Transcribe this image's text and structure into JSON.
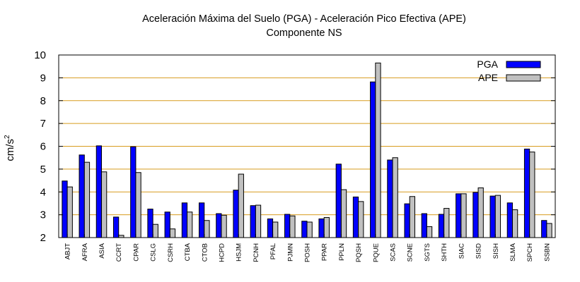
{
  "chart_data": {
    "type": "bar",
    "title": "Aceleración Máxima del Suelo (PGA) -  Aceleración Pico Efectiva (APE)",
    "subtitle": "Componente NS",
    "ylabel_base": "cm/s",
    "ylabel_sup": "2",
    "ylim": [
      2,
      10
    ],
    "yticks": [
      2,
      3,
      4,
      5,
      6,
      7,
      8,
      9,
      10
    ],
    "grid": true,
    "legend_position": "top-right",
    "categories": [
      "ABJT",
      "AFRA",
      "ASIA",
      "CCRT",
      "CPAR",
      "CSLG",
      "CSRH",
      "CTBA",
      "CTOB",
      "HCPD",
      "HSJM",
      "PCNH",
      "PFAL",
      "PJMN",
      "POSH",
      "PPAR",
      "PPLN",
      "PQSH",
      "PQUE",
      "SCAS",
      "SCNE",
      "SGTS",
      "SHTH",
      "SIAC",
      "SISD",
      "SISH",
      "SLMA",
      "SPCH",
      "SSBN"
    ],
    "series": [
      {
        "name": "PGA",
        "color": "#0000ff",
        "values": [
          4.48,
          5.62,
          6.02,
          2.9,
          5.98,
          3.25,
          3.12,
          3.52,
          3.52,
          3.05,
          4.08,
          3.4,
          2.82,
          3.02,
          2.72,
          2.82,
          5.22,
          3.78,
          8.82,
          5.4,
          3.48,
          3.05,
          3.02,
          3.92,
          3.98,
          3.82,
          3.52,
          5.88,
          2.75
        ]
      },
      {
        "name": "APE",
        "color": "#c0c0c0",
        "values": [
          4.22,
          5.3,
          4.88,
          2.1,
          4.85,
          2.58,
          2.38,
          3.12,
          2.75,
          2.98,
          4.78,
          3.42,
          2.68,
          2.95,
          2.68,
          2.88,
          4.1,
          3.58,
          9.65,
          5.5,
          3.8,
          2.48,
          3.28,
          3.92,
          4.18,
          3.85,
          3.22,
          5.75,
          2.62
        ]
      }
    ]
  }
}
